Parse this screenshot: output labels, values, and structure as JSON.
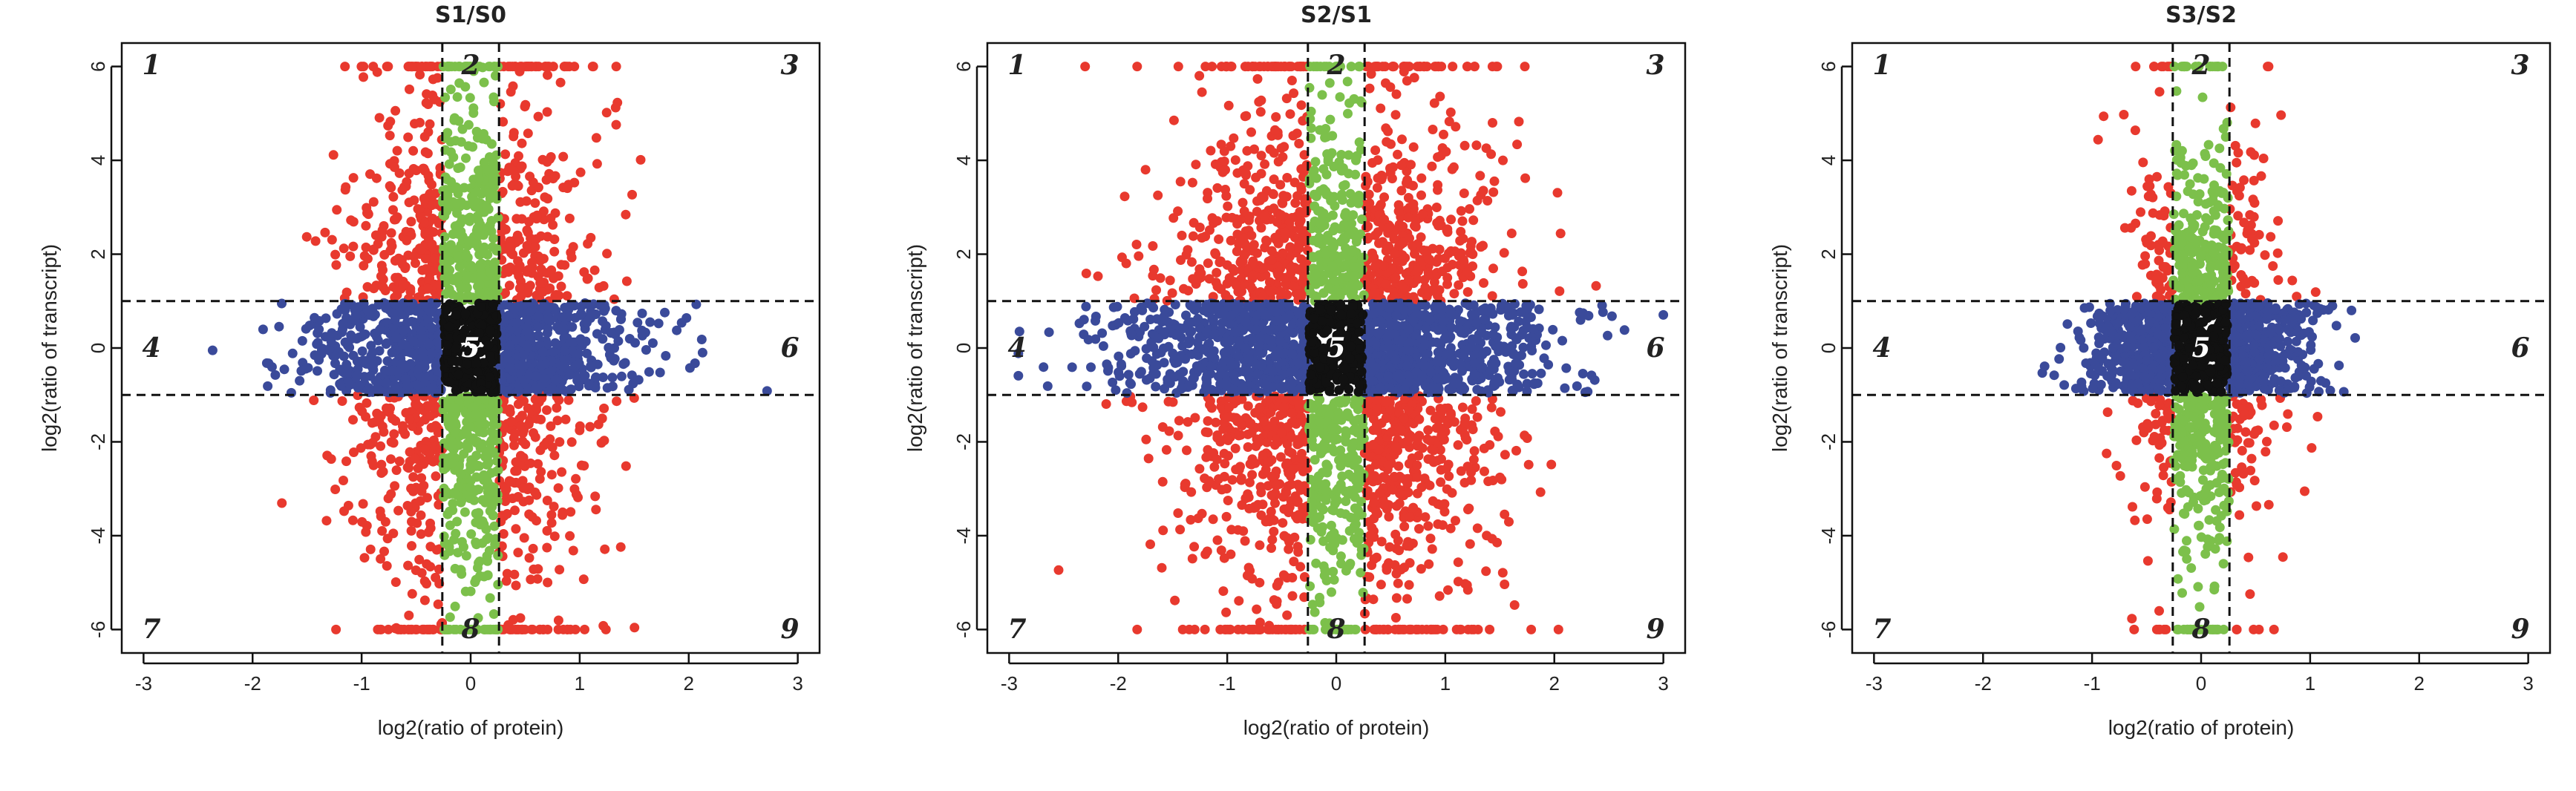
{
  "chart_data": [
    {
      "type": "scatter",
      "title": "S1/S0",
      "xlabel": "log2(ratio of protein)",
      "ylabel": "log2(ratio of transcript)",
      "xlim": [
        -3.2,
        3.2
      ],
      "ylim": [
        -6.5,
        6.5
      ],
      "x_ticks": [
        -3,
        -2,
        -1,
        0,
        1,
        2,
        3
      ],
      "y_ticks": [
        -6,
        -4,
        -2,
        0,
        2,
        4,
        6
      ],
      "grid": false,
      "thresholds": {
        "x": [
          -0.26,
          0.26
        ],
        "y": [
          -1,
          1
        ]
      },
      "quadrant_labels": [
        "1",
        "2",
        "3",
        "4",
        "5",
        "6",
        "7",
        "8",
        "9"
      ],
      "point_spread": {
        "x_sd": 0.7,
        "x_max": 3.0,
        "y_sd": 2.6,
        "y_max": 6.0
      },
      "series": [
        {
          "color": "#e8392e",
          "count": 900
        },
        {
          "color": "#7cc04b",
          "count": 650
        },
        {
          "color": "#3a4a9a",
          "count": 900
        },
        {
          "color": "#111111",
          "count": 250
        }
      ]
    },
    {
      "type": "scatter",
      "title": "S2/S1",
      "xlabel": "log2(ratio of protein)",
      "ylabel": "log2(ratio of transcript)",
      "xlim": [
        -3.2,
        3.2
      ],
      "ylim": [
        -6.5,
        6.5
      ],
      "x_ticks": [
        -3,
        -2,
        -1,
        0,
        1,
        2,
        3
      ],
      "y_ticks": [
        -6,
        -4,
        -2,
        0,
        2,
        4,
        6
      ],
      "grid": false,
      "thresholds": {
        "x": [
          -0.26,
          0.26
        ],
        "y": [
          -1,
          1
        ]
      },
      "quadrant_labels": [
        "1",
        "2",
        "3",
        "4",
        "5",
        "6",
        "7",
        "8",
        "9"
      ],
      "point_spread": {
        "x_sd": 0.95,
        "x_max": 3.0,
        "y_sd": 2.4,
        "y_max": 6.0
      },
      "series": [
        {
          "color": "#e8392e",
          "count": 1600
        },
        {
          "color": "#7cc04b",
          "count": 500
        },
        {
          "color": "#3a4a9a",
          "count": 1300
        },
        {
          "color": "#111111",
          "count": 250
        }
      ]
    },
    {
      "type": "scatter",
      "title": "S3/S2",
      "xlabel": "log2(ratio of protein)",
      "ylabel": "log2(ratio of transcript)",
      "xlim": [
        -3.2,
        3.2
      ],
      "ylim": [
        -6.5,
        6.5
      ],
      "x_ticks": [
        -3,
        -2,
        -1,
        0,
        1,
        2,
        3
      ],
      "y_ticks": [
        -6,
        -4,
        -2,
        0,
        2,
        4,
        6
      ],
      "grid": false,
      "thresholds": {
        "x": [
          -0.26,
          0.26
        ],
        "y": [
          -1,
          1
        ]
      },
      "quadrant_labels": [
        "1",
        "2",
        "3",
        "4",
        "5",
        "6",
        "7",
        "8",
        "9"
      ],
      "point_spread": {
        "x_sd": 0.45,
        "x_max": 2.85,
        "y_sd": 2.0,
        "y_max": 6.0
      },
      "series": [
        {
          "color": "#e8392e",
          "count": 250
        },
        {
          "color": "#7cc04b",
          "count": 500
        },
        {
          "color": "#3a4a9a",
          "count": 800
        },
        {
          "color": "#111111",
          "count": 250
        }
      ]
    }
  ]
}
